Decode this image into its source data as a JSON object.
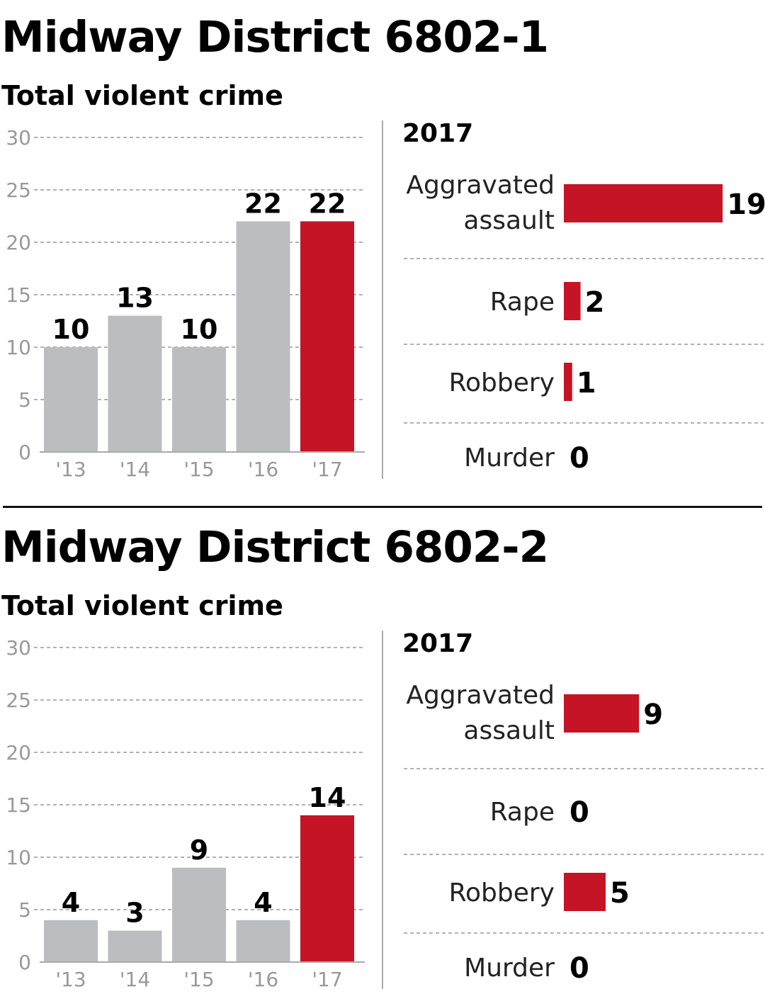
{
  "panels": [
    {
      "title": "Midway District 6802-1",
      "subtitle": "Total violent crime"
    },
    {
      "title": "Midway District 6802-2",
      "subtitle": "Total violent crime"
    }
  ],
  "colors": {
    "gray_bar": "#bcbdc1",
    "highlight_bar": "#c41426"
  },
  "chart_data": [
    {
      "type": "bar",
      "title": "Total violent crime",
      "categories": [
        "'13",
        "'14",
        "'15",
        "'16",
        "'17"
      ],
      "values": [
        10,
        13,
        10,
        22,
        22
      ],
      "highlight_index": 4,
      "ylim": [
        0,
        30
      ],
      "yticks": [
        0,
        5,
        10,
        15,
        20,
        25,
        30
      ],
      "grid": true,
      "xlabel": "",
      "ylabel": ""
    },
    {
      "type": "bar",
      "orientation": "horizontal",
      "title": "2017",
      "categories": [
        [
          "Aggravated",
          "assault"
        ],
        [
          "Rape"
        ],
        [
          "Robbery"
        ],
        [
          "Murder"
        ]
      ],
      "values": [
        19,
        2,
        1,
        0
      ]
    },
    {
      "type": "bar",
      "title": "Total violent crime",
      "categories": [
        "'13",
        "'14",
        "'15",
        "'16",
        "'17"
      ],
      "values": [
        4,
        3,
        9,
        4,
        14
      ],
      "highlight_index": 4,
      "ylim": [
        0,
        30
      ],
      "yticks": [
        0,
        5,
        10,
        15,
        20,
        25,
        30
      ],
      "grid": true,
      "xlabel": "",
      "ylabel": ""
    },
    {
      "type": "bar",
      "orientation": "horizontal",
      "title": "2017",
      "categories": [
        [
          "Aggravated",
          "assault"
        ],
        [
          "Rape"
        ],
        [
          "Robbery"
        ],
        [
          "Murder"
        ]
      ],
      "values": [
        9,
        0,
        5,
        0
      ]
    }
  ]
}
